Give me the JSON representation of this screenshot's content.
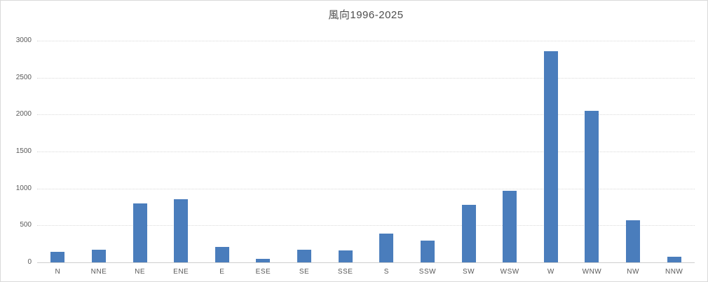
{
  "chart": {
    "colors": {
      "bar": "#4a7dbc",
      "gridline": "#d9d9d9",
      "zero_line": "#cfcfcf",
      "axis_text": "#595959",
      "title_text": "#4d4d4d",
      "frame_border": "#d9d9d9",
      "background": "#ffffff"
    }
  },
  "chart_data": {
    "type": "bar",
    "title": "風向1996-2025",
    "categories": [
      "N",
      "NNE",
      "NE",
      "ENE",
      "E",
      "ESE",
      "SE",
      "SSE",
      "S",
      "SSW",
      "SW",
      "WSW",
      "W",
      "WNW",
      "NW",
      "NNW"
    ],
    "values": [
      140,
      170,
      800,
      855,
      210,
      45,
      175,
      160,
      390,
      290,
      780,
      965,
      2860,
      2050,
      570,
      80
    ],
    "xlabel": "",
    "ylabel": "",
    "ylim": [
      0,
      3000
    ],
    "yticks": [
      0,
      500,
      1000,
      1500,
      2000,
      2500,
      3000
    ],
    "grid": true,
    "gridline_style": "dotted",
    "legend": false,
    "legend_position": "none"
  }
}
